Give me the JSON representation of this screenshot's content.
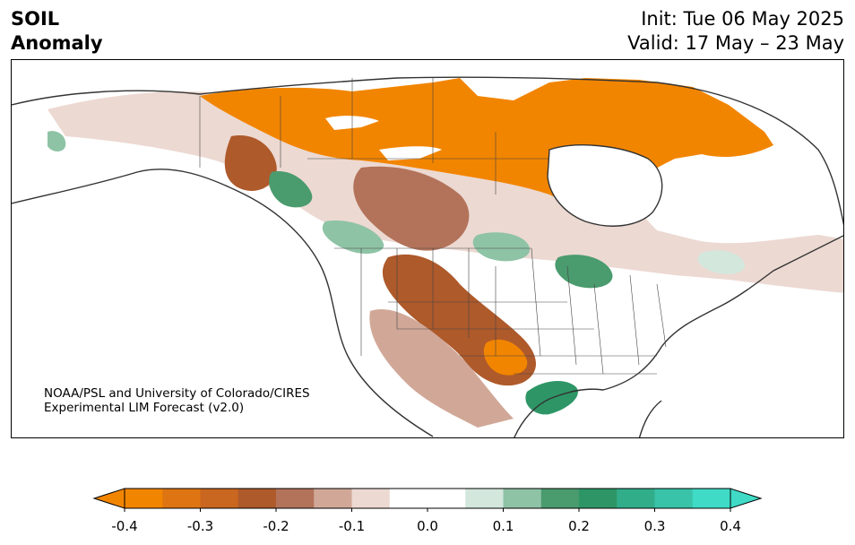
{
  "header": {
    "title_line1": "SOIL",
    "title_line2": "Anomaly",
    "init": "Init: Tue 06 May 2025",
    "valid": "Valid: 17 May – 23 May"
  },
  "credit": {
    "line1": "NOAA/PSL and University of Colorado/CIRES",
    "line2": "Experimental LIM Forecast (v2.0)"
  },
  "colorbar": {
    "colors": [
      "#f28500",
      "#de7412",
      "#c9661f",
      "#ae5a2b",
      "#b3735a",
      "#d1a898",
      "#ecd9d2",
      "#ffffff",
      "#ffffff",
      "#d3e7dd",
      "#8ec3a6",
      "#4a9b6e",
      "#2e9666",
      "#31ad8a",
      "#39c3a8",
      "#3fdbc6"
    ],
    "ticks": [
      "-0.4",
      "-0.3",
      "-0.2",
      "-0.1",
      "0.0",
      "0.1",
      "0.2",
      "0.3",
      "0.4"
    ]
  }
}
